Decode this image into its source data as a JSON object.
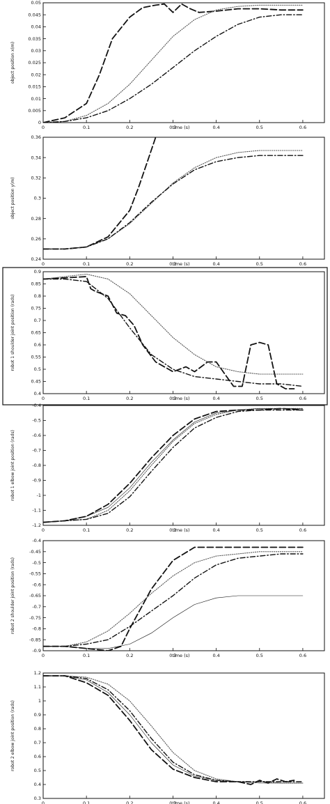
{
  "chart_data": [
    {
      "type": "line",
      "xlabel": "time (s)",
      "ylabel": "object position x(m)",
      "xlim": [
        0,
        0.65
      ],
      "ylim": [
        0,
        0.05
      ],
      "xticks": [
        "0",
        "0.1",
        "0.2",
        "0.3",
        "0.4",
        "0.5",
        "0.6"
      ],
      "xtick_values": [
        0,
        0.1,
        0.2,
        0.3,
        0.4,
        0.5,
        0.6
      ],
      "yticks": [
        "0",
        "0.005",
        "0.01",
        "0.015",
        "0.02",
        "0.025",
        "0.03",
        "0.035",
        "0.04",
        "0.045",
        "0.05"
      ],
      "ytick_values": [
        0,
        0.005,
        0.01,
        0.015,
        0.02,
        0.025,
        0.03,
        0.035,
        0.04,
        0.045,
        0.05
      ],
      "series": [
        {
          "style": "dashed",
          "x": [
            0,
            0.05,
            0.1,
            0.13,
            0.16,
            0.2,
            0.23,
            0.26,
            0.28,
            0.3,
            0.32,
            0.34,
            0.36,
            0.4,
            0.45,
            0.5,
            0.55,
            0.6
          ],
          "y": [
            0,
            0.002,
            0.008,
            0.02,
            0.035,
            0.044,
            0.048,
            0.049,
            0.0495,
            0.046,
            0.0495,
            0.0475,
            0.046,
            0.0465,
            0.0475,
            0.0475,
            0.047,
            0.047
          ]
        },
        {
          "style": "dotted",
          "x": [
            0,
            0.05,
            0.1,
            0.15,
            0.2,
            0.25,
            0.3,
            0.35,
            0.4,
            0.45,
            0.5,
            0.55,
            0.6
          ],
          "y": [
            0,
            0.0005,
            0.003,
            0.008,
            0.016,
            0.026,
            0.036,
            0.043,
            0.047,
            0.0485,
            0.049,
            0.049,
            0.049
          ]
        },
        {
          "style": "dashdot",
          "x": [
            0,
            0.05,
            0.1,
            0.15,
            0.2,
            0.25,
            0.3,
            0.35,
            0.4,
            0.45,
            0.5,
            0.55,
            0.6
          ],
          "y": [
            0,
            0.0005,
            0.002,
            0.005,
            0.01,
            0.016,
            0.023,
            0.03,
            0.036,
            0.041,
            0.044,
            0.045,
            0.045
          ]
        }
      ]
    },
    {
      "type": "line",
      "xlabel": "time (s)",
      "ylabel": "object position y(m)",
      "xlim": [
        0,
        0.65
      ],
      "ylim": [
        0.24,
        0.36
      ],
      "xticks": [
        "0",
        "0.1",
        "0.2",
        "0.3",
        "0.4",
        "0.5",
        "0.6"
      ],
      "xtick_values": [
        0,
        0.1,
        0.2,
        0.3,
        0.4,
        0.5,
        0.6
      ],
      "yticks": [
        "0.24",
        "0.26",
        "0.28",
        "0.3",
        "0.32",
        "0.34",
        "0.36"
      ],
      "ytick_values": [
        0.24,
        0.26,
        0.28,
        0.3,
        0.32,
        0.34,
        0.36
      ],
      "series": [
        {
          "style": "dashed",
          "x": [
            0,
            0.05,
            0.1,
            0.15,
            0.2,
            0.22,
            0.24,
            0.26
          ],
          "y": [
            0.25,
            0.25,
            0.252,
            0.262,
            0.288,
            0.31,
            0.335,
            0.36
          ]
        },
        {
          "style": "dotted",
          "x": [
            0,
            0.05,
            0.1,
            0.15,
            0.2,
            0.25,
            0.3,
            0.35,
            0.4,
            0.45,
            0.5,
            0.55,
            0.6
          ],
          "y": [
            0.25,
            0.25,
            0.252,
            0.26,
            0.275,
            0.295,
            0.315,
            0.33,
            0.34,
            0.345,
            0.347,
            0.347,
            0.347
          ]
        },
        {
          "style": "dashdot",
          "x": [
            0,
            0.05,
            0.1,
            0.15,
            0.2,
            0.25,
            0.3,
            0.35,
            0.4,
            0.45,
            0.5,
            0.55,
            0.6
          ],
          "y": [
            0.25,
            0.25,
            0.252,
            0.26,
            0.276,
            0.296,
            0.314,
            0.328,
            0.336,
            0.34,
            0.342,
            0.342,
            0.342
          ]
        }
      ]
    },
    {
      "type": "line",
      "xlabel": "time (s)",
      "ylabel": "robot 1 shoulder joint position (rads)",
      "xlim": [
        0,
        0.65
      ],
      "ylim": [
        0.4,
        0.9
      ],
      "xticks": [
        "0",
        "0.1",
        "0.2",
        "0.3",
        "0.4",
        "0.5",
        "0.6"
      ],
      "xtick_values": [
        0,
        0.1,
        0.2,
        0.3,
        0.4,
        0.5,
        0.6
      ],
      "yticks": [
        "0.4",
        "0.45",
        "0.5",
        "0.55",
        "0.6",
        "0.65",
        "0.7",
        "0.75",
        "0.8",
        "0.85",
        "0.9"
      ],
      "ytick_values": [
        0.4,
        0.45,
        0.5,
        0.55,
        0.6,
        0.65,
        0.7,
        0.75,
        0.8,
        0.85,
        0.9
      ],
      "series": [
        {
          "style": "dashed",
          "x": [
            0,
            0.05,
            0.1,
            0.11,
            0.12,
            0.15,
            0.17,
            0.19,
            0.21,
            0.23,
            0.26,
            0.3,
            0.33,
            0.35,
            0.38,
            0.4,
            0.42,
            0.44,
            0.46,
            0.48,
            0.5,
            0.52,
            0.54,
            0.56,
            0.58
          ],
          "y": [
            0.87,
            0.875,
            0.88,
            0.83,
            0.82,
            0.8,
            0.73,
            0.72,
            0.68,
            0.6,
            0.53,
            0.49,
            0.51,
            0.49,
            0.53,
            0.53,
            0.48,
            0.43,
            0.43,
            0.6,
            0.61,
            0.6,
            0.44,
            0.42,
            0.42
          ]
        },
        {
          "style": "dotted",
          "x": [
            0,
            0.05,
            0.1,
            0.15,
            0.2,
            0.25,
            0.3,
            0.35,
            0.4,
            0.45,
            0.5,
            0.55,
            0.6
          ],
          "y": [
            0.87,
            0.88,
            0.89,
            0.87,
            0.81,
            0.72,
            0.63,
            0.56,
            0.51,
            0.49,
            0.48,
            0.48,
            0.48
          ]
        },
        {
          "style": "dashdot",
          "x": [
            0,
            0.05,
            0.1,
            0.15,
            0.2,
            0.25,
            0.3,
            0.35,
            0.4,
            0.45,
            0.5,
            0.55,
            0.6
          ],
          "y": [
            0.87,
            0.87,
            0.86,
            0.79,
            0.67,
            0.56,
            0.5,
            0.47,
            0.46,
            0.45,
            0.44,
            0.44,
            0.43
          ]
        }
      ]
    },
    {
      "type": "line",
      "xlabel": "time (s)",
      "ylabel": "robot 1 elbow joint position (rads)",
      "xlim": [
        0,
        0.65
      ],
      "ylim": [
        -1.2,
        -0.4
      ],
      "xticks": [
        "0",
        "0.1",
        "0.2",
        "0.3",
        "0.4",
        "0.5",
        "0.6"
      ],
      "xtick_values": [
        0,
        0.1,
        0.2,
        0.3,
        0.4,
        0.5,
        0.6
      ],
      "yticks": [
        "-1.2",
        "-1.1",
        "-1",
        "-0.9",
        "-0.8",
        "-0.7",
        "-0.6",
        "-0.5",
        "-0.4"
      ],
      "ytick_values": [
        -1.2,
        -1.1,
        -1,
        -0.9,
        -0.8,
        -0.7,
        -0.6,
        -0.5,
        -0.4
      ],
      "series": [
        {
          "style": "dashed",
          "x": [
            0,
            0.05,
            0.1,
            0.15,
            0.2,
            0.25,
            0.3,
            0.35,
            0.4,
            0.45,
            0.5,
            0.55,
            0.6
          ],
          "y": [
            -1.18,
            -1.17,
            -1.14,
            -1.06,
            -0.92,
            -0.75,
            -0.6,
            -0.49,
            -0.44,
            -0.43,
            -0.43,
            -0.42,
            -0.43
          ]
        },
        {
          "style": "dotted",
          "x": [
            0,
            0.05,
            0.1,
            0.15,
            0.2,
            0.25,
            0.3,
            0.35,
            0.4,
            0.45,
            0.5,
            0.55,
            0.6
          ],
          "y": [
            -1.18,
            -1.17,
            -1.16,
            -1.1,
            -0.97,
            -0.8,
            -0.64,
            -0.52,
            -0.46,
            -0.43,
            -0.42,
            -0.42,
            -0.42
          ]
        },
        {
          "style": "dashdot",
          "x": [
            0,
            0.05,
            0.1,
            0.15,
            0.2,
            0.25,
            0.3,
            0.35,
            0.4,
            0.45,
            0.5,
            0.55,
            0.6
          ],
          "y": [
            -1.18,
            -1.17,
            -1.16,
            -1.12,
            -1.01,
            -0.84,
            -0.68,
            -0.55,
            -0.48,
            -0.44,
            -0.43,
            -0.43,
            -0.43
          ]
        },
        {
          "style": "solid-thin",
          "x": [
            0,
            0.05,
            0.1,
            0.15,
            0.2,
            0.25,
            0.3,
            0.35,
            0.4,
            0.45,
            0.5,
            0.55,
            0.6
          ],
          "y": [
            -1.18,
            -1.17,
            -1.14,
            -1.08,
            -0.95,
            -0.78,
            -0.63,
            -0.51,
            -0.45,
            -0.43,
            -0.42,
            -0.42,
            -0.42
          ]
        }
      ]
    },
    {
      "type": "line",
      "xlabel": "time (s)",
      "ylabel": "robot 2 shoulder joint position (rads)",
      "xlim": [
        0,
        0.65
      ],
      "ylim": [
        -0.9,
        -0.4
      ],
      "xticks": [
        "0",
        "0.1",
        "0.2",
        "0.3",
        "0.4",
        "0.5",
        "0.6"
      ],
      "xtick_values": [
        0,
        0.1,
        0.2,
        0.3,
        0.4,
        0.5,
        0.6
      ],
      "yticks": [
        "-0.9",
        "-0.85",
        "-0.8",
        "-0.75",
        "-0.7",
        "-0.65",
        "-0.6",
        "-0.55",
        "-0.5",
        "-0.45",
        "-0.4"
      ],
      "ytick_values": [
        -0.9,
        -0.85,
        -0.8,
        -0.75,
        -0.7,
        -0.65,
        -0.6,
        -0.55,
        -0.5,
        -0.45,
        -0.4
      ],
      "series": [
        {
          "style": "dashed",
          "x": [
            0,
            0.05,
            0.1,
            0.15,
            0.18,
            0.2,
            0.25,
            0.3,
            0.35,
            0.4,
            0.45,
            0.5,
            0.55,
            0.6
          ],
          "y": [
            -0.88,
            -0.88,
            -0.89,
            -0.9,
            -0.88,
            -0.8,
            -0.62,
            -0.49,
            -0.43,
            -0.43,
            -0.43,
            -0.43,
            -0.43,
            -0.43
          ]
        },
        {
          "style": "dotted",
          "x": [
            0,
            0.05,
            0.1,
            0.15,
            0.2,
            0.25,
            0.3,
            0.35,
            0.4,
            0.45,
            0.5,
            0.55,
            0.6
          ],
          "y": [
            -0.88,
            -0.88,
            -0.86,
            -0.81,
            -0.73,
            -0.64,
            -0.56,
            -0.5,
            -0.47,
            -0.46,
            -0.45,
            -0.45,
            -0.45
          ]
        },
        {
          "style": "dashdot",
          "x": [
            0,
            0.05,
            0.1,
            0.15,
            0.2,
            0.25,
            0.3,
            0.35,
            0.4,
            0.45,
            0.5,
            0.55,
            0.6
          ],
          "y": [
            -0.88,
            -0.88,
            -0.87,
            -0.85,
            -0.79,
            -0.72,
            -0.65,
            -0.57,
            -0.51,
            -0.48,
            -0.47,
            -0.46,
            -0.46
          ]
        },
        {
          "style": "solid-thin",
          "x": [
            0,
            0.05,
            0.1,
            0.15,
            0.2,
            0.25,
            0.3,
            0.35,
            0.4,
            0.45,
            0.5,
            0.55,
            0.6
          ],
          "y": [
            -0.88,
            -0.88,
            -0.89,
            -0.89,
            -0.87,
            -0.82,
            -0.75,
            -0.69,
            -0.66,
            -0.65,
            -0.65,
            -0.65,
            -0.65
          ]
        }
      ]
    },
    {
      "type": "line",
      "xlabel": "time (s)",
      "ylabel": "robot 2 elbow joint position (rads)",
      "xlim": [
        0,
        0.65
      ],
      "ylim": [
        0.3,
        1.2
      ],
      "xticks": [
        "0",
        "0.1",
        "0.2",
        "0.3",
        "0.4",
        "0.5",
        "0.6"
      ],
      "xtick_values": [
        0,
        0.1,
        0.2,
        0.3,
        0.4,
        0.5,
        0.6
      ],
      "yticks": [
        "0.3",
        "0.4",
        "0.5",
        "0.6",
        "0.7",
        "0.8",
        "0.9",
        "1",
        "1.1",
        "1.2"
      ],
      "ytick_values": [
        0.3,
        0.4,
        0.5,
        0.6,
        0.7,
        0.8,
        0.9,
        1,
        1.1,
        1.2
      ],
      "series": [
        {
          "style": "dashed",
          "x": [
            0,
            0.05,
            0.1,
            0.15,
            0.2,
            0.25,
            0.3,
            0.35,
            0.4,
            0.45,
            0.48,
            0.5,
            0.52,
            0.54,
            0.56,
            0.58
          ],
          "y": [
            1.18,
            1.18,
            1.13,
            1.04,
            0.86,
            0.65,
            0.51,
            0.45,
            0.42,
            0.42,
            0.4,
            0.43,
            0.41,
            0.44,
            0.42,
            0.43
          ]
        },
        {
          "style": "dotted",
          "x": [
            0,
            0.05,
            0.1,
            0.15,
            0.2,
            0.25,
            0.3,
            0.35,
            0.4,
            0.45,
            0.5,
            0.55,
            0.6
          ],
          "y": [
            1.18,
            1.18,
            1.17,
            1.12,
            1.0,
            0.82,
            0.63,
            0.5,
            0.44,
            0.42,
            0.42,
            0.41,
            0.41
          ]
        },
        {
          "style": "dashdot",
          "x": [
            0,
            0.05,
            0.1,
            0.15,
            0.2,
            0.25,
            0.3,
            0.35,
            0.4,
            0.45,
            0.5,
            0.55,
            0.6
          ],
          "y": [
            1.18,
            1.18,
            1.16,
            1.08,
            0.93,
            0.73,
            0.56,
            0.47,
            0.43,
            0.42,
            0.42,
            0.42,
            0.42
          ]
        },
        {
          "style": "solid-thin",
          "x": [
            0,
            0.05,
            0.1,
            0.15,
            0.2,
            0.25,
            0.3,
            0.35,
            0.4,
            0.45,
            0.5,
            0.55,
            0.6
          ],
          "y": [
            1.18,
            1.18,
            1.15,
            1.06,
            0.9,
            0.7,
            0.54,
            0.46,
            0.43,
            0.42,
            0.41,
            0.41,
            0.41
          ]
        }
      ]
    }
  ]
}
